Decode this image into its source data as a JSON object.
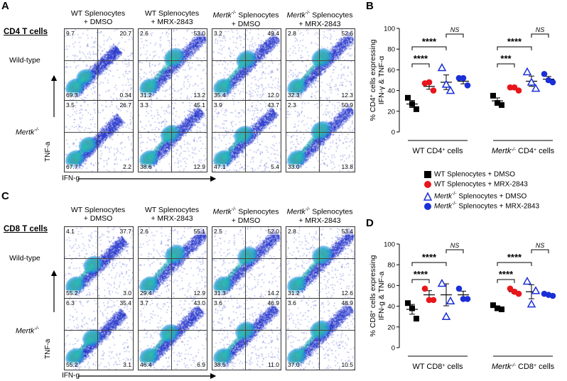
{
  "panels": {
    "A": "A",
    "B": "B",
    "C": "C",
    "D": "D"
  },
  "col_headers": [
    {
      "line1": "WT Splenocytes",
      "line2": "+ DMSO"
    },
    {
      "line1": "WT Splenocytes",
      "line2": "+ MRX-2843"
    },
    {
      "line1": "Mertk",
      "sup": "-/-",
      "rest": " Splenocytes",
      "line2": "+ DMSO"
    },
    {
      "line1": "Mertk",
      "sup": "-/-",
      "rest": " Splenocytes",
      "line2": "+ MRX-2843"
    }
  ],
  "section_A": "CD4 T cells",
  "section_C": "CD8 T cells",
  "row_labels": {
    "wt": "Wild-type",
    "ko": "Mertk",
    "ko_sup": "-/-"
  },
  "axes": {
    "y": "TNF-a",
    "x": "IFN-g"
  },
  "flow_A": [
    [
      {
        "tl": "9.7",
        "tr": "20.7",
        "bl": "69.3",
        "br": "0.34"
      },
      {
        "tl": "2.6",
        "tr": "53.0",
        "bl": "31.2",
        "br": "13.2"
      },
      {
        "tl": "3.2",
        "tr": "49.4",
        "bl": "35.4",
        "br": "12.0"
      },
      {
        "tl": "2.8",
        "tr": "52.6",
        "bl": "32.3",
        "br": "12.3"
      }
    ],
    [
      {
        "tl": "3.5",
        "tr": "26.7",
        "bl": "67.7",
        "br": "2.2"
      },
      {
        "tl": "3.3",
        "tr": "45.1",
        "bl": "38.6",
        "br": "12.9"
      },
      {
        "tl": "3.9",
        "tr": "43.7",
        "bl": "47.1",
        "br": "5.4"
      },
      {
        "tl": "2.3",
        "tr": "50.9",
        "bl": "33.0",
        "br": "13.8"
      }
    ]
  ],
  "flow_C": [
    [
      {
        "tl": "4.1",
        "tr": "37.7",
        "bl": "55.2",
        "br": "3.0"
      },
      {
        "tl": "2.6",
        "tr": "55.1",
        "bl": "29.4",
        "br": "12.9"
      },
      {
        "tl": "2.5",
        "tr": "52.0",
        "bl": "31.3",
        "br": "14.2"
      },
      {
        "tl": "2.8",
        "tr": "53.4",
        "bl": "31.2",
        "br": "12.6"
      }
    ],
    [
      {
        "tl": "6.3",
        "tr": "35.4",
        "bl": "55.2",
        "br": "3.1"
      },
      {
        "tl": "3.7",
        "tr": "43.0",
        "bl": "46.4",
        "br": "6.9"
      },
      {
        "tl": "3.6",
        "tr": "46.9",
        "bl": "38.5",
        "br": "11.0"
      },
      {
        "tl": "3.6",
        "tr": "48.9",
        "bl": "37.0",
        "br": "10.5"
      }
    ]
  ],
  "legend": [
    {
      "prefix": "WT Splenocytes + DMSO",
      "italic": "",
      "sup": "",
      "color": "#000000",
      "marker": "square"
    },
    {
      "prefix": "WT Splenocytes + MRX-2843",
      "italic": "",
      "sup": "",
      "color": "#e8161b",
      "marker": "circle"
    },
    {
      "prefix": " Splenocytes + DMSO",
      "italic": "Mertk",
      "sup": "-/-",
      "color": "#1a2fd6",
      "marker": "triangle-open"
    },
    {
      "prefix": " Splenocytes + MRX-2843",
      "italic": "Mertk",
      "sup": "-/-",
      "color": "#1a2fd6",
      "marker": "circle"
    }
  ],
  "colors": {
    "black": "#000000",
    "red": "#e8161b",
    "blue": "#1a2fd6"
  },
  "chart_data": [
    {
      "type": "scatter",
      "panel": "B",
      "ylabel_line1": "% CD4",
      "ylabel_line2": "IFN-γ & TNF-α",
      "ylabel_tail": " cells expressing",
      "ylim": [
        0,
        100
      ],
      "yticks": [
        0,
        20,
        40,
        60,
        80,
        100
      ],
      "groups": [
        {
          "label": "WT CD4",
          "label_tail": " cells",
          "italic_prefix": ""
        },
        {
          "label": " CD4",
          "label_tail": " cells",
          "italic_prefix": "Mertk",
          "sup": "-/-"
        }
      ],
      "series": [
        {
          "name": "WT Splenocytes + DMSO",
          "group_values": [
            [
              33,
              22,
              27
            ],
            [
              35,
              26,
              28
            ]
          ],
          "mean": [
            27,
            30
          ]
        },
        {
          "name": "WT Splenocytes + MRX-2843",
          "group_values": [
            [
              47,
              40,
              48
            ],
            [
              43,
              40,
              43
            ]
          ],
          "mean": [
            44,
            42
          ]
        },
        {
          "name": "Mertk-/- Splenocytes + DMSO",
          "group_values": [
            [
              62,
              40,
              46
            ],
            [
              58,
              42,
              48
            ]
          ],
          "mean": [
            48,
            49
          ]
        },
        {
          "name": "Mertk-/- Splenocytes + MRX-2843",
          "group_values": [
            [
              52,
              45,
              52
            ],
            [
              56,
              48,
              50
            ]
          ],
          "mean": [
            49,
            51
          ]
        }
      ],
      "significance": [
        {
          "group": 0,
          "from": 0,
          "to": 1,
          "label": "****"
        },
        {
          "group": 0,
          "from": 0,
          "to": 2,
          "label": "****"
        },
        {
          "group": 0,
          "from": 2,
          "to": 3,
          "label": "NS"
        },
        {
          "group": 1,
          "from": 0,
          "to": 1,
          "label": "***"
        },
        {
          "group": 1,
          "from": 0,
          "to": 2,
          "label": "****"
        },
        {
          "group": 1,
          "from": 2,
          "to": 3,
          "label": "NS"
        }
      ]
    },
    {
      "type": "scatter",
      "panel": "D",
      "ylabel_line1": "% CD8",
      "ylabel_line2": "IFN-g & TNF-a",
      "ylabel_tail": " cells expressing",
      "ylim": [
        0,
        100
      ],
      "yticks": [
        0,
        20,
        40,
        60,
        80,
        100
      ],
      "groups": [
        {
          "label": "WT CD8",
          "label_tail": " cells",
          "italic_prefix": ""
        },
        {
          "label": " CD8",
          "label_tail": " cells",
          "italic_prefix": "Mertk",
          "sup": "-/-"
        }
      ],
      "series": [
        {
          "name": "WT Splenocytes + DMSO",
          "group_values": [
            [
              43,
              28,
              38
            ],
            [
              41,
              37,
              38
            ]
          ],
          "mean": [
            37,
            39
          ]
        },
        {
          "name": "WT Splenocytes + MRX-2843",
          "group_values": [
            [
              57,
              46,
              46
            ],
            [
              57,
              52,
              54
            ]
          ],
          "mean": [
            51,
            54
          ]
        },
        {
          "name": "Mertk-/- Splenocytes + DMSO",
          "group_values": [
            [
              62,
              45,
              30
            ],
            [
              64,
              55,
              42
            ]
          ],
          "mean": [
            51,
            54
          ]
        },
        {
          "name": "Mertk-/- Splenocytes + MRX-2843",
          "group_values": [
            [
              57,
              47,
              47
            ],
            [
              52,
              50,
              51
            ]
          ],
          "mean": [
            51,
            51
          ]
        }
      ],
      "significance": [
        {
          "group": 0,
          "from": 0,
          "to": 1,
          "label": "****"
        },
        {
          "group": 0,
          "from": 0,
          "to": 2,
          "label": "****"
        },
        {
          "group": 0,
          "from": 2,
          "to": 3,
          "label": "NS"
        },
        {
          "group": 1,
          "from": 0,
          "to": 1,
          "label": "****"
        },
        {
          "group": 1,
          "from": 0,
          "to": 2,
          "label": "****"
        },
        {
          "group": 1,
          "from": 2,
          "to": 3,
          "label": "NS"
        }
      ]
    }
  ]
}
